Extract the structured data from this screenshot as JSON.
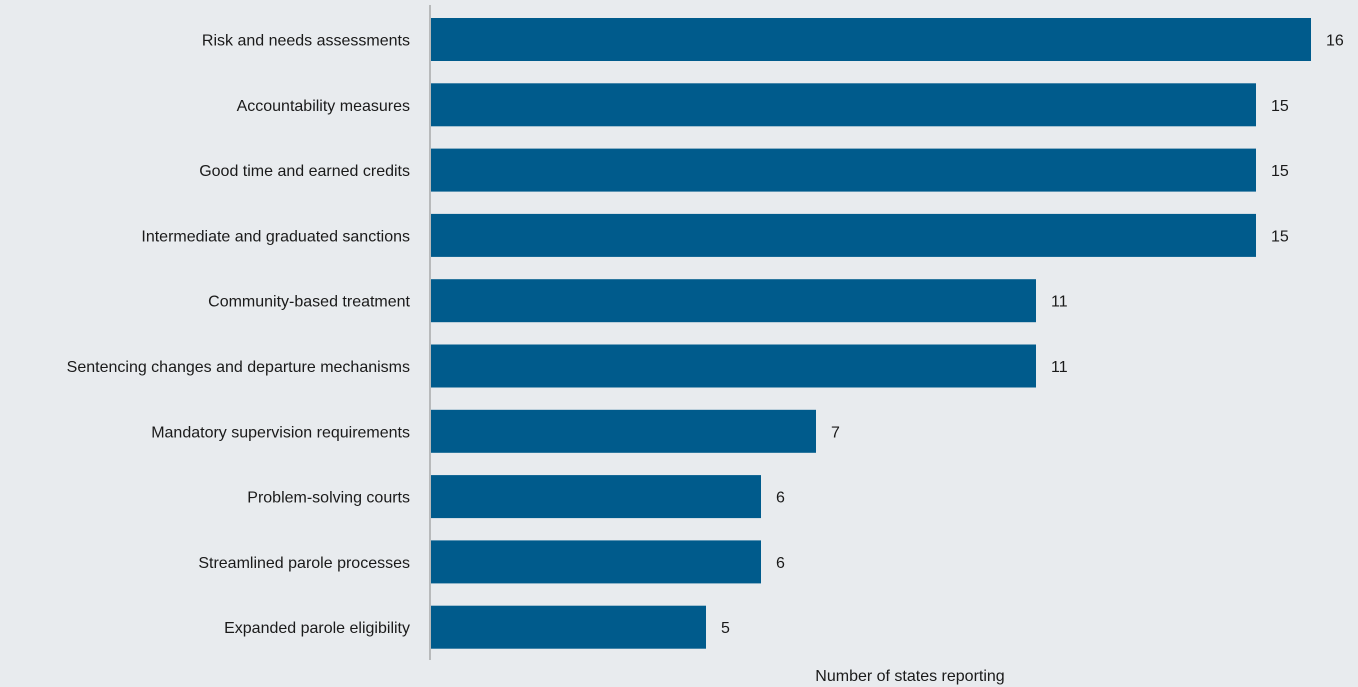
{
  "chart_data": {
    "type": "bar",
    "orientation": "horizontal",
    "categories": [
      "Risk and needs assessments",
      "Accountability measures",
      "Good time and earned credits",
      "Intermediate and graduated sanctions",
      "Community-based treatment",
      "Sentencing changes and departure mechanisms",
      "Mandatory supervision requirements",
      "Problem-solving courts",
      "Streamlined parole processes",
      "Expanded parole eligibility"
    ],
    "values": [
      16,
      15,
      15,
      15,
      11,
      11,
      7,
      6,
      6,
      5
    ],
    "title": "",
    "xlabel": "Number of states reporting",
    "ylabel": "",
    "xlim": [
      0,
      16
    ],
    "grid": false,
    "legend": "none",
    "data_labels": true,
    "colors": {
      "bar": "#005b8c",
      "background": "#e8ebee",
      "axis": "#888888",
      "text": "#1a1a1a"
    }
  }
}
